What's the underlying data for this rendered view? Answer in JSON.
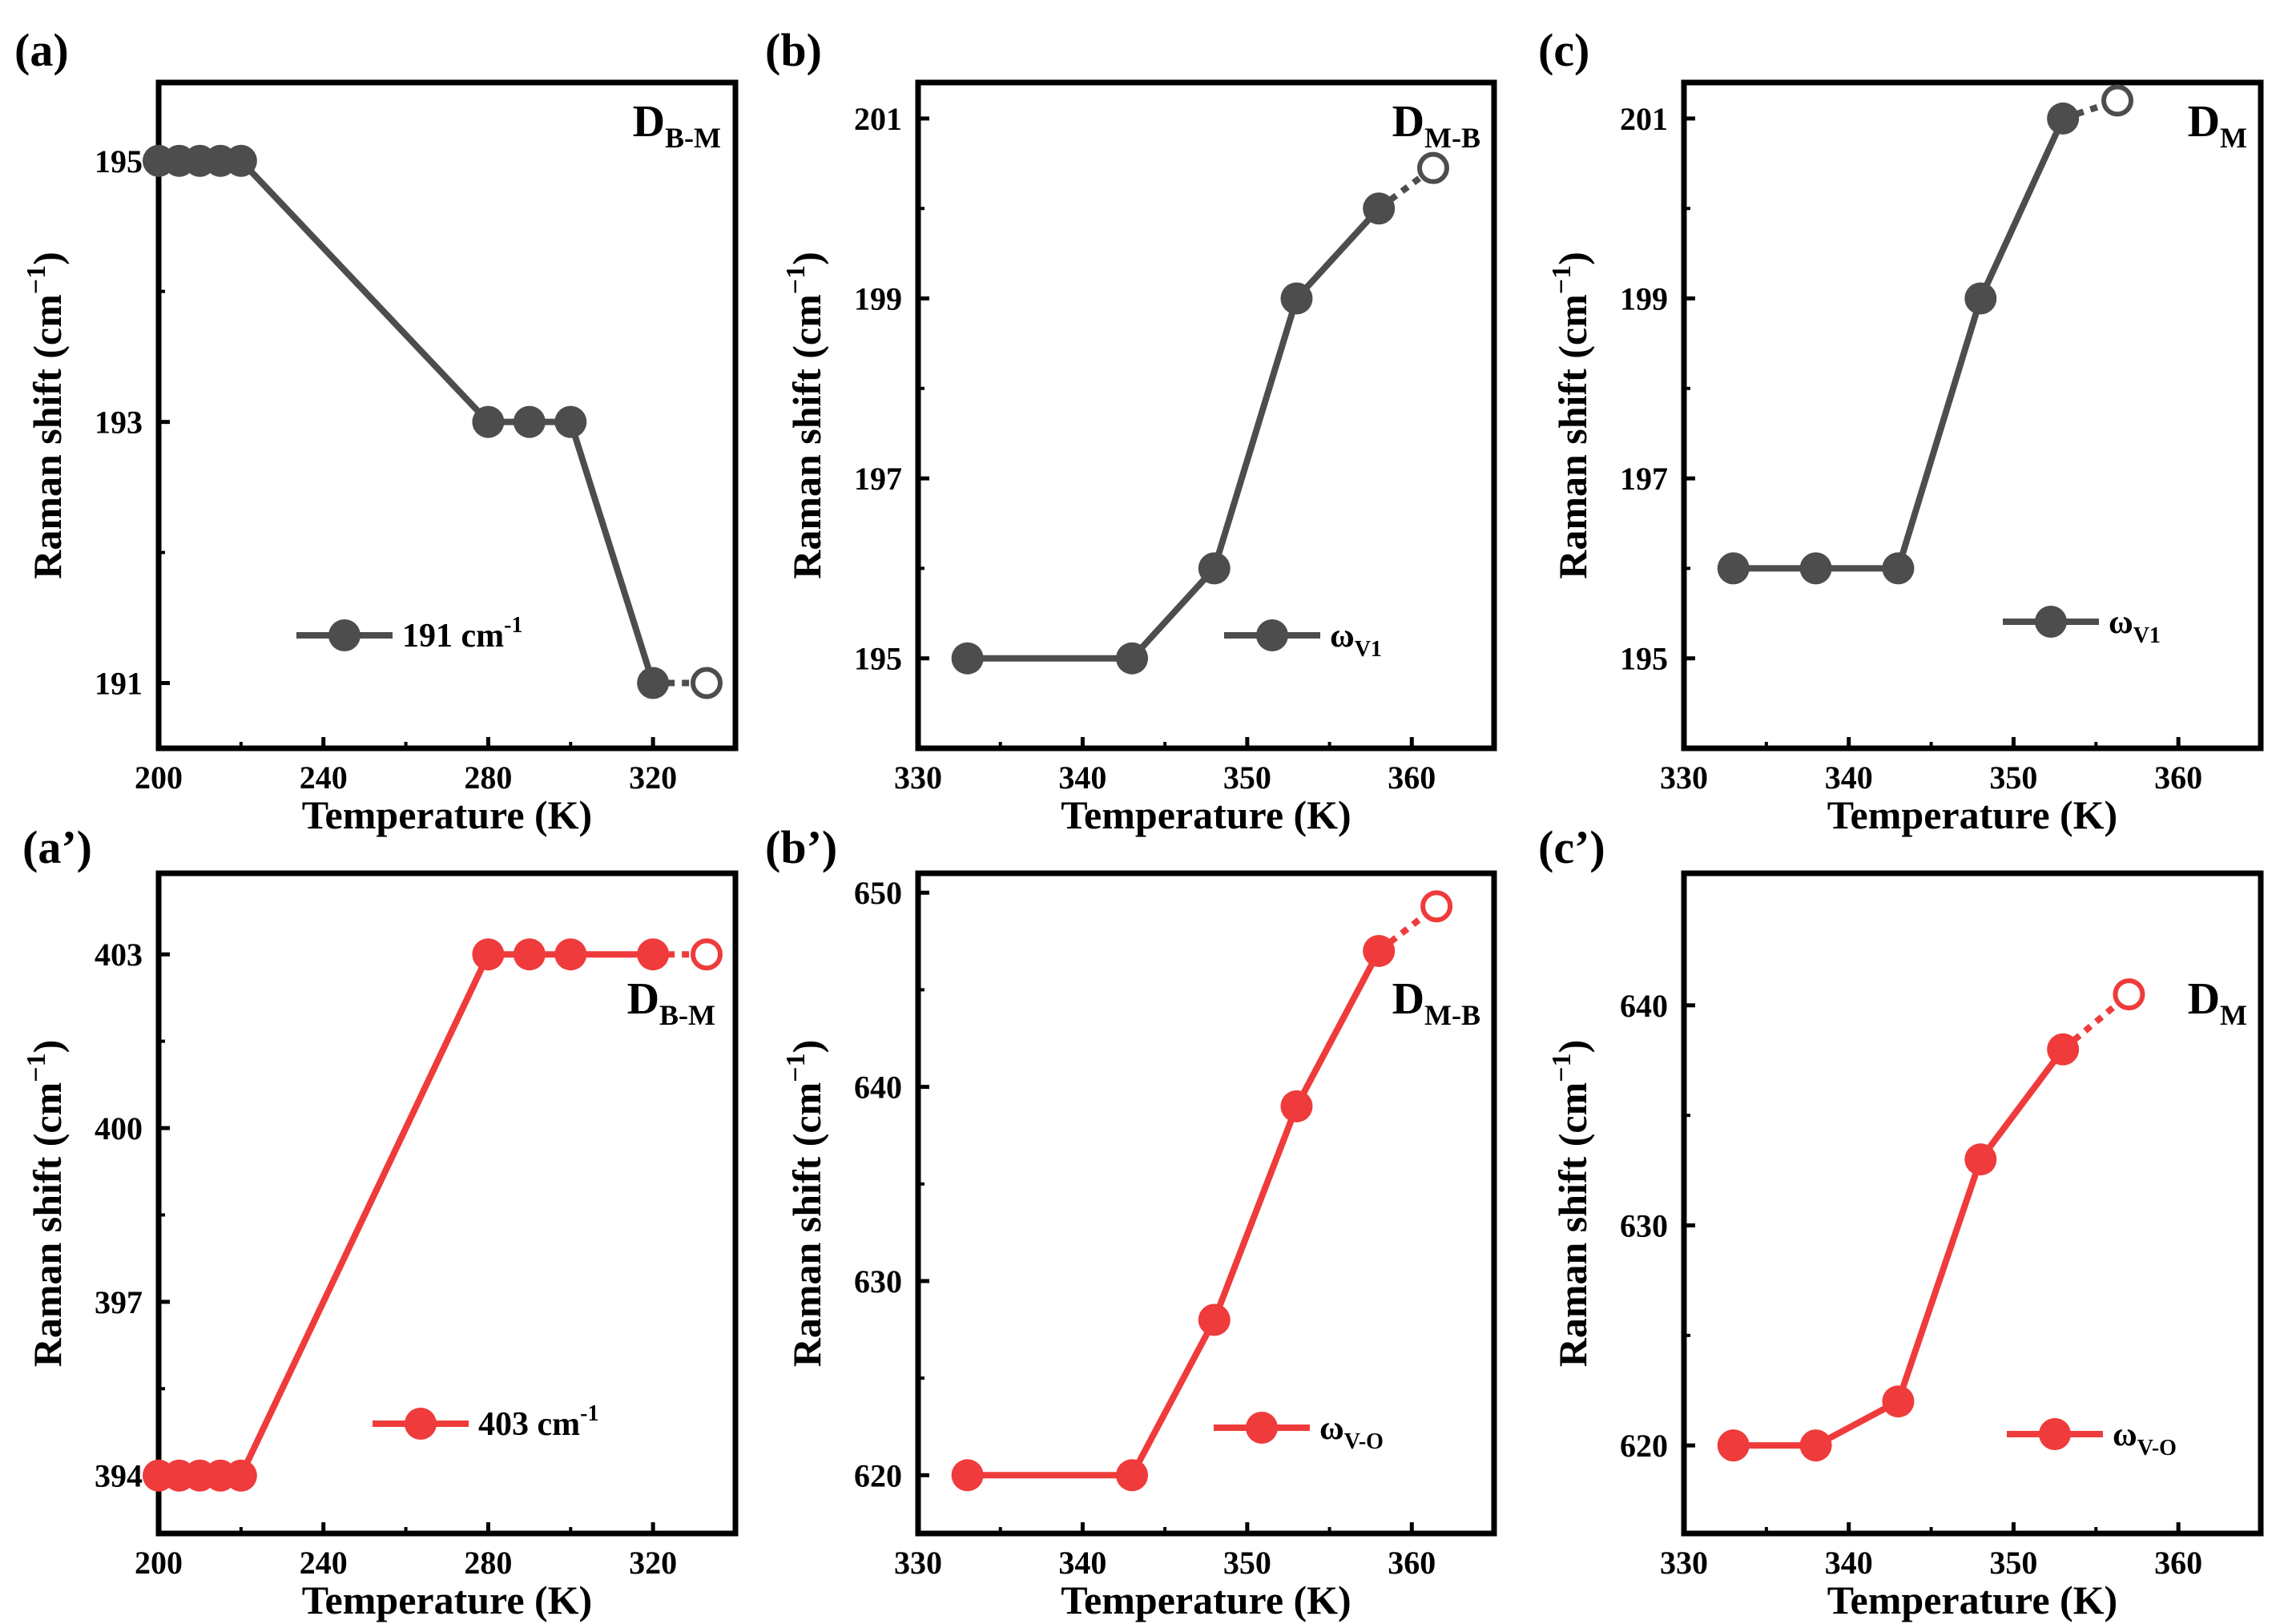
{
  "figure": {
    "colors": {
      "gray": "#4d4d4d",
      "red": "#ef3b3b",
      "axis": "#000000"
    },
    "y_axis_title": "Raman shift (cm",
    "y_axis_title_sup": "−1",
    "y_axis_title_end": ")",
    "x_axis_title": "Temperature (K)"
  },
  "chart_data": [
    {
      "id": "a",
      "panel_label": "(a)",
      "type": "line",
      "color": "gray",
      "xlabel": "Temperature (K)",
      "ylabel": "Raman shift (cm−1)",
      "xlim": [
        200,
        340
      ],
      "ylim": [
        190.5,
        195.6
      ],
      "xticks": [
        200,
        240,
        280,
        320
      ],
      "yticks": [
        191,
        193,
        195
      ],
      "x": [
        200,
        205,
        210,
        215,
        220,
        280,
        290,
        300,
        320
      ],
      "y": [
        195,
        195,
        195,
        195,
        195,
        193,
        193,
        193,
        191
      ],
      "open_point": {
        "x": 333,
        "y": 191
      },
      "annotation": {
        "main": "D",
        "sub": "B-M"
      },
      "annotation_pos": "top-right",
      "legend": {
        "main": "191 cm",
        "sup": "-1",
        "sub": ""
      }
    },
    {
      "id": "b",
      "panel_label": "(b)",
      "type": "line",
      "color": "gray",
      "xlabel": "Temperature (K)",
      "ylabel": "Raman shift (cm−1)",
      "xlim": [
        330,
        365
      ],
      "ylim": [
        194,
        201.4
      ],
      "xticks": [
        330,
        340,
        350,
        360
      ],
      "yticks": [
        195,
        197,
        199,
        201
      ],
      "x": [
        333,
        343,
        348,
        353,
        358
      ],
      "y": [
        195,
        195,
        196,
        199,
        200
      ],
      "open_point": {
        "x": 361.3,
        "y": 200.45
      },
      "annotation": {
        "main": "D",
        "sub": "M-B"
      },
      "annotation_pos": "top-right",
      "legend": {
        "main": "ω",
        "sup": "",
        "sub": "V1"
      }
    },
    {
      "id": "c",
      "panel_label": "(c)",
      "type": "line",
      "color": "gray",
      "xlabel": "Temperature (K)",
      "ylabel": "Raman shift (cm−1)",
      "xlim": [
        330,
        365
      ],
      "ylim": [
        194,
        201.4
      ],
      "xticks": [
        330,
        340,
        350,
        360
      ],
      "yticks": [
        195,
        197,
        199,
        201
      ],
      "x": [
        333,
        338,
        343,
        348,
        353
      ],
      "y": [
        196,
        196,
        196,
        199,
        201
      ],
      "open_point": {
        "x": 356.3,
        "y": 201.2
      },
      "annotation": {
        "main": "D",
        "sub": "M"
      },
      "annotation_pos": "top-right",
      "legend": {
        "main": "ω",
        "sup": "",
        "sub": "V1"
      }
    },
    {
      "id": "a2",
      "panel_label": "(a’)",
      "type": "line",
      "color": "red",
      "xlabel": "Temperature (K)",
      "ylabel": "Raman shift (cm−1)",
      "xlim": [
        200,
        340
      ],
      "ylim": [
        393,
        404.4
      ],
      "xticks": [
        200,
        240,
        280,
        320
      ],
      "yticks": [
        394,
        397,
        400,
        403
      ],
      "x": [
        200,
        205,
        210,
        215,
        220,
        280,
        290,
        300,
        320
      ],
      "y": [
        394,
        394,
        394,
        394,
        394,
        403,
        403,
        403,
        403
      ],
      "open_point": {
        "x": 333,
        "y": 403
      },
      "annotation": {
        "main": "D",
        "sub": "B-M"
      },
      "annotation_pos": "top-right",
      "legend": {
        "main": "403 cm",
        "sup": "-1",
        "sub": ""
      }
    },
    {
      "id": "b2",
      "panel_label": "(b’)",
      "type": "line",
      "color": "red",
      "xlabel": "Temperature (K)",
      "ylabel": "Raman shift (cm−1)",
      "xlim": [
        330,
        365
      ],
      "ylim": [
        617,
        651
      ],
      "xticks": [
        330,
        340,
        350,
        360
      ],
      "yticks": [
        620,
        630,
        640,
        650
      ],
      "x": [
        333,
        343,
        348,
        353,
        358
      ],
      "y": [
        620,
        620,
        628,
        639,
        647
      ],
      "open_point": {
        "x": 361.5,
        "y": 649.3
      },
      "annotation": {
        "main": "D",
        "sub": "M-B"
      },
      "annotation_pos": "top-right",
      "legend": {
        "main": "ω",
        "sup": "",
        "sub": "V-O"
      }
    },
    {
      "id": "c2",
      "panel_label": "(c’)",
      "type": "line",
      "color": "red",
      "xlabel": "Temperature (K)",
      "ylabel": "Raman shift (cm−1)",
      "xlim": [
        330,
        365
      ],
      "ylim": [
        616,
        646
      ],
      "xticks": [
        330,
        340,
        350,
        360
      ],
      "yticks": [
        620,
        630,
        640
      ],
      "x": [
        333,
        338,
        343,
        348,
        353
      ],
      "y": [
        620,
        620,
        622,
        633,
        638
      ],
      "open_point": {
        "x": 357,
        "y": 640.5
      },
      "annotation": {
        "main": "D",
        "sub": "M"
      },
      "annotation_pos": "top-right",
      "legend": {
        "main": "ω",
        "sup": "",
        "sub": "V-O"
      }
    }
  ]
}
